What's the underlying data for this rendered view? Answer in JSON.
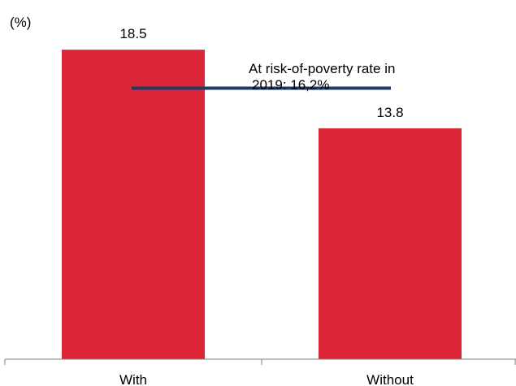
{
  "chart_data": {
    "type": "bar",
    "unit_label": "(%)",
    "categories": [
      "With",
      "Without"
    ],
    "values": [
      18.5,
      13.8
    ],
    "value_labels": [
      "18.5",
      "13.8"
    ],
    "ylim": [
      0,
      20.5
    ],
    "grid": false,
    "legend": "none",
    "bar_color": "#d92535",
    "reference_line": {
      "value": 16.2,
      "color": "#1f3a6b",
      "label_lines": [
        "At risk-of-poverty rate in",
        "2019: 16,2%"
      ]
    },
    "title": "",
    "xlabel": "",
    "ylabel": ""
  }
}
